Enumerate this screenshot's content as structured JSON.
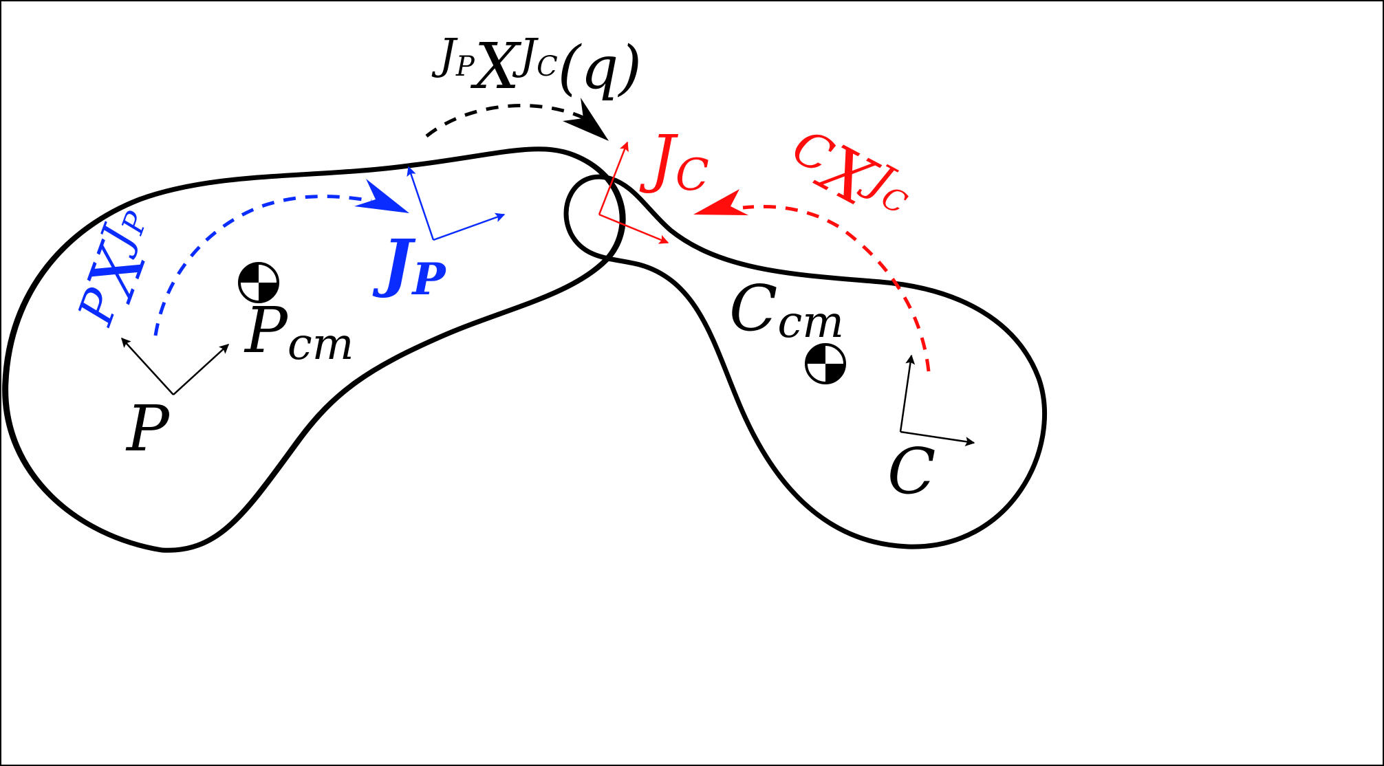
{
  "colors": {
    "black": "#000000",
    "blue": "#0a2cff",
    "red": "#ff0d0d"
  },
  "labels": {
    "joint_transform": {
      "sup_pre": "J",
      "sup_pre_sub": "P",
      "main": "X",
      "sup_post": "J",
      "sup_post_sub": "C",
      "arg": "(q)"
    },
    "parent_frame": {
      "main": "P"
    },
    "parent_cm": {
      "main": "P",
      "sub": "cm"
    },
    "parent_joint": {
      "main": "J",
      "sub": "P"
    },
    "parent_transform": {
      "pre": "P",
      "main": "X",
      "post": "J",
      "post_sub": "P"
    },
    "child_frame": {
      "main": "C"
    },
    "child_cm": {
      "main": "C",
      "sub": "cm"
    },
    "child_joint": {
      "main": "J",
      "sub": "C"
    },
    "child_transform": {
      "pre": "C",
      "main": "X",
      "post": "J",
      "post_sub": "C"
    }
  },
  "icons": {
    "parent_cm_marker": "center-of-mass-icon",
    "child_cm_marker": "center-of-mass-icon"
  }
}
